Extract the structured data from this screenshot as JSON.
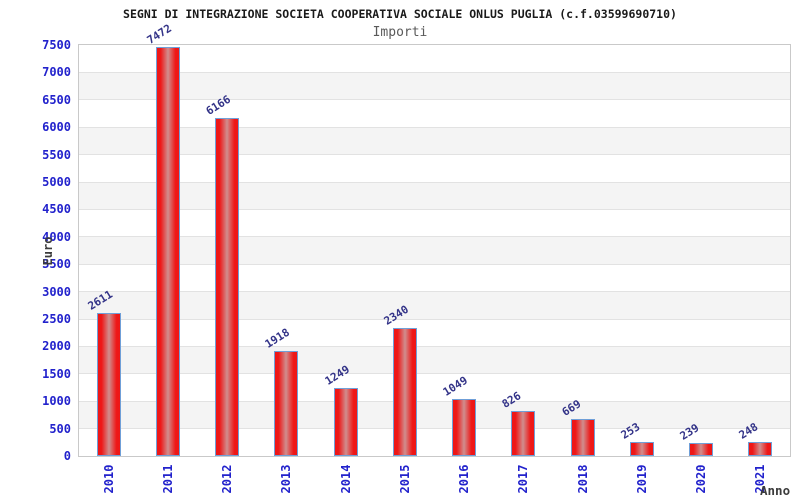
{
  "chart_data": {
    "type": "bar",
    "title": "SEGNI DI INTEGRAZIONE SOCIETA COOPERATIVA SOCIALE ONLUS PUGLIA (c.f.03599690710)",
    "subtitle": "Importi",
    "xlabel": "Anno",
    "ylabel": "Euro",
    "categories": [
      "2010",
      "2011",
      "2012",
      "2013",
      "2014",
      "2015",
      "2016",
      "2017",
      "2018",
      "2019",
      "2020",
      "2021"
    ],
    "values": [
      2611,
      7472,
      6166,
      1918,
      1249,
      2340,
      1049,
      826,
      669,
      253,
      239,
      248
    ],
    "ylim": [
      0,
      7500
    ],
    "ytick_step": 500,
    "grid": "horizontal-bands",
    "legend": "none",
    "colors": {
      "title_text": "#1a1a1a",
      "subtitle_text": "#5a5a5a",
      "axis_tick_text": "#2222cc",
      "value_label_text": "#333388",
      "axis_title_text": "#3c3c3c",
      "bar_edge": "#ee1717",
      "bar_center": "#d08e8e",
      "bar_border": "#6f9fd8",
      "band_fill": "#f4f4f4",
      "band_alt_fill": "#ffffff",
      "gridline": "#e2e2e2",
      "plot_border": "#c9c9c9"
    }
  }
}
